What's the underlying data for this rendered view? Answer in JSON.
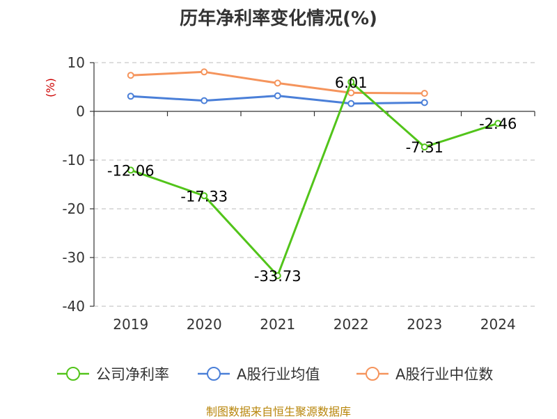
{
  "chart_data": {
    "type": "line",
    "title": "历年净利率变化情况(%)",
    "ylabel": "(%)",
    "categories": [
      "2019",
      "2020",
      "2021",
      "2022",
      "2023",
      "2024"
    ],
    "ylim": [
      -40,
      10
    ],
    "yticks": [
      10,
      0,
      -10,
      -20,
      -30,
      -40
    ],
    "grid": true,
    "legend_position": "bottom",
    "series": [
      {
        "name": "公司净利率",
        "color": "#52c41a",
        "values": [
          -12.06,
          -17.33,
          -33.73,
          6.01,
          -7.31,
          -2.46
        ],
        "labels": [
          "-12.06",
          "-17.33",
          "-33.73",
          "6.01",
          "-7.31",
          "-2.46"
        ]
      },
      {
        "name": "A股行业均值",
        "color": "#4a7fd8",
        "values": [
          3.1,
          2.2,
          3.2,
          1.6,
          1.8,
          null
        ]
      },
      {
        "name": "A股行业中位数",
        "color": "#f5945c",
        "values": [
          7.4,
          8.1,
          5.8,
          3.8,
          3.7,
          null
        ]
      }
    ]
  },
  "source": "制图数据来自恒生聚源数据库"
}
